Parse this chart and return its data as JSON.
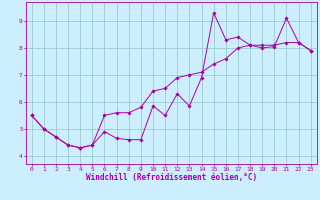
{
  "xlabel": "Windchill (Refroidissement éolien,°C)",
  "bg_color": "#cceeff",
  "line_color": "#aa00aa",
  "grid_color": "#99cccc",
  "xlim": [
    -0.5,
    23.5
  ],
  "ylim": [
    3.7,
    9.7
  ],
  "xticks": [
    0,
    1,
    2,
    3,
    4,
    5,
    6,
    7,
    8,
    9,
    10,
    11,
    12,
    13,
    14,
    15,
    16,
    17,
    18,
    19,
    20,
    21,
    22,
    23
  ],
  "yticks": [
    4,
    5,
    6,
    7,
    8,
    9
  ],
  "line1_x": [
    0,
    1,
    2,
    3,
    4,
    5,
    6,
    7,
    8,
    9,
    10,
    11,
    12,
    13,
    14,
    15,
    16,
    17,
    18,
    19,
    20,
    21,
    22,
    23
  ],
  "line1_y": [
    5.5,
    5.0,
    4.7,
    4.4,
    4.3,
    4.4,
    4.9,
    4.65,
    4.6,
    4.6,
    5.85,
    5.5,
    6.3,
    5.85,
    6.9,
    9.3,
    8.3,
    8.4,
    8.1,
    8.0,
    8.05,
    9.1,
    8.2,
    7.9
  ],
  "line2_x": [
    0,
    1,
    2,
    3,
    4,
    5,
    6,
    7,
    8,
    9,
    10,
    11,
    12,
    13,
    14,
    15,
    16,
    17,
    18,
    19,
    20,
    21,
    22,
    23
  ],
  "line2_y": [
    5.5,
    5.0,
    4.7,
    4.4,
    4.3,
    4.4,
    5.5,
    5.6,
    5.6,
    5.8,
    6.4,
    6.5,
    6.9,
    7.0,
    7.1,
    7.4,
    7.6,
    8.0,
    8.1,
    8.1,
    8.1,
    8.2,
    8.2,
    7.9
  ],
  "tick_fontsize": 4.5,
  "xlabel_fontsize": 5.5
}
